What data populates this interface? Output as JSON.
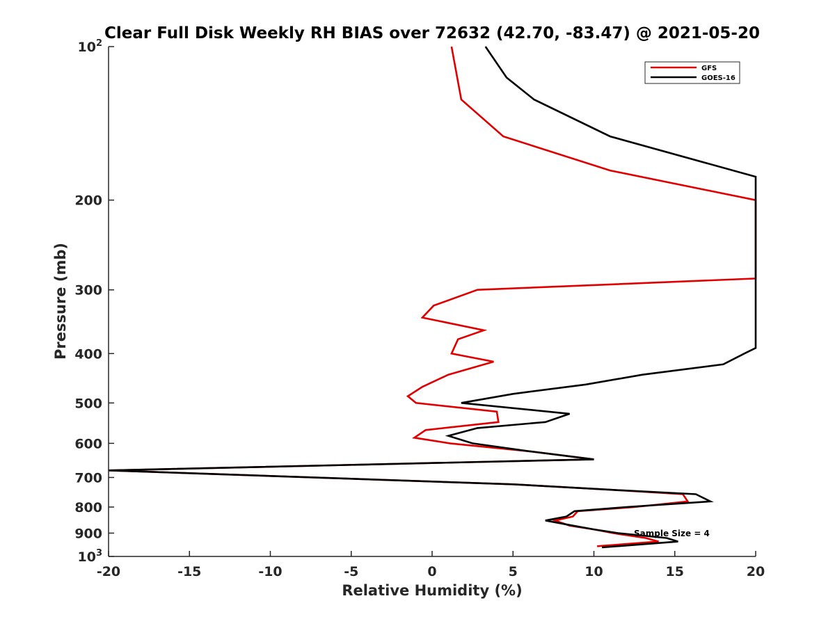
{
  "chart_data": {
    "type": "line",
    "title": "Clear Full Disk Weekly RH BIAS over 72632 (42.70, -83.47) @ 2021-05-20",
    "xlabel": "Relative Humidity (%)",
    "ylabel": "Pressure (mb)",
    "xlim": [
      -20,
      20
    ],
    "ylim": [
      100,
      1000
    ],
    "y_scale": "log",
    "y_reversed": true,
    "grid": false,
    "legend_position": "top-right",
    "x_ticks": [
      -20,
      -15,
      -10,
      -5,
      0,
      5,
      10,
      15,
      20
    ],
    "x_tick_labels": [
      "-20",
      "-15",
      "-10",
      "-5",
      "0",
      "5",
      "10",
      "15",
      "20"
    ],
    "y_ticks": [
      100,
      200,
      300,
      400,
      500,
      600,
      700,
      800,
      900,
      1000
    ],
    "y_tick_labels": [
      {
        "base": "10",
        "exp": "2"
      },
      {
        "base": "200",
        "exp": ""
      },
      {
        "base": "300",
        "exp": ""
      },
      {
        "base": "400",
        "exp": ""
      },
      {
        "base": "500",
        "exp": ""
      },
      {
        "base": "600",
        "exp": ""
      },
      {
        "base": "700",
        "exp": ""
      },
      {
        "base": "800",
        "exp": ""
      },
      {
        "base": "900",
        "exp": ""
      },
      {
        "base": "10",
        "exp": "3"
      }
    ],
    "annotation": "Sample Size = 4",
    "series": [
      {
        "name": "GFS",
        "color": "#e00000",
        "points": [
          [
            1.2,
            100
          ],
          [
            1.8,
            127
          ],
          [
            4.4,
            150
          ],
          [
            11.0,
            175
          ],
          [
            20.0,
            200
          ],
          [
            20.0,
            285
          ],
          [
            2.8,
            300
          ],
          [
            0.1,
            322
          ],
          [
            -0.6,
            340
          ],
          [
            3.2,
            360
          ],
          [
            1.6,
            375
          ],
          [
            1.2,
            400
          ],
          [
            3.8,
            415
          ],
          [
            1.0,
            440
          ],
          [
            -0.6,
            465
          ],
          [
            -1.5,
            485
          ],
          [
            -1.0,
            500
          ],
          [
            4.0,
            520
          ],
          [
            4.1,
            545
          ],
          [
            -0.4,
            565
          ],
          [
            -1.1,
            585
          ],
          [
            1.1,
            600
          ],
          [
            6.0,
            622
          ],
          [
            10.0,
            645
          ],
          [
            -20.0,
            678
          ],
          [
            5.0,
            722
          ],
          [
            11.0,
            740
          ],
          [
            15.5,
            755
          ],
          [
            15.8,
            780
          ],
          [
            12.5,
            800
          ],
          [
            9.0,
            815
          ],
          [
            8.7,
            835
          ],
          [
            7.6,
            850
          ],
          [
            8.5,
            870
          ],
          [
            10.0,
            885
          ],
          [
            11.2,
            900
          ],
          [
            13.2,
            920
          ],
          [
            14.0,
            935
          ],
          [
            10.2,
            955
          ]
        ]
      },
      {
        "name": "GOES-16",
        "color": "#000000",
        "points": [
          [
            3.3,
            100
          ],
          [
            4.6,
            115
          ],
          [
            6.3,
            127
          ],
          [
            11.0,
            150
          ],
          [
            20.0,
            180
          ],
          [
            20.0,
            390
          ],
          [
            19.3,
            400
          ],
          [
            18.0,
            420
          ],
          [
            13.0,
            440
          ],
          [
            9.5,
            460
          ],
          [
            5.0,
            480
          ],
          [
            1.8,
            500
          ],
          [
            8.5,
            525
          ],
          [
            7.0,
            545
          ],
          [
            2.8,
            560
          ],
          [
            1.0,
            580
          ],
          [
            2.5,
            600
          ],
          [
            6.0,
            622
          ],
          [
            10.0,
            645
          ],
          [
            -20.0,
            678
          ],
          [
            5.0,
            722
          ],
          [
            11.0,
            740
          ],
          [
            16.3,
            755
          ],
          [
            17.2,
            780
          ],
          [
            12.0,
            800
          ],
          [
            8.8,
            815
          ],
          [
            8.3,
            835
          ],
          [
            7.0,
            850
          ],
          [
            8.7,
            870
          ],
          [
            10.0,
            885
          ],
          [
            11.5,
            900
          ],
          [
            14.5,
            920
          ],
          [
            15.2,
            935
          ],
          [
            10.5,
            960
          ]
        ]
      }
    ]
  }
}
